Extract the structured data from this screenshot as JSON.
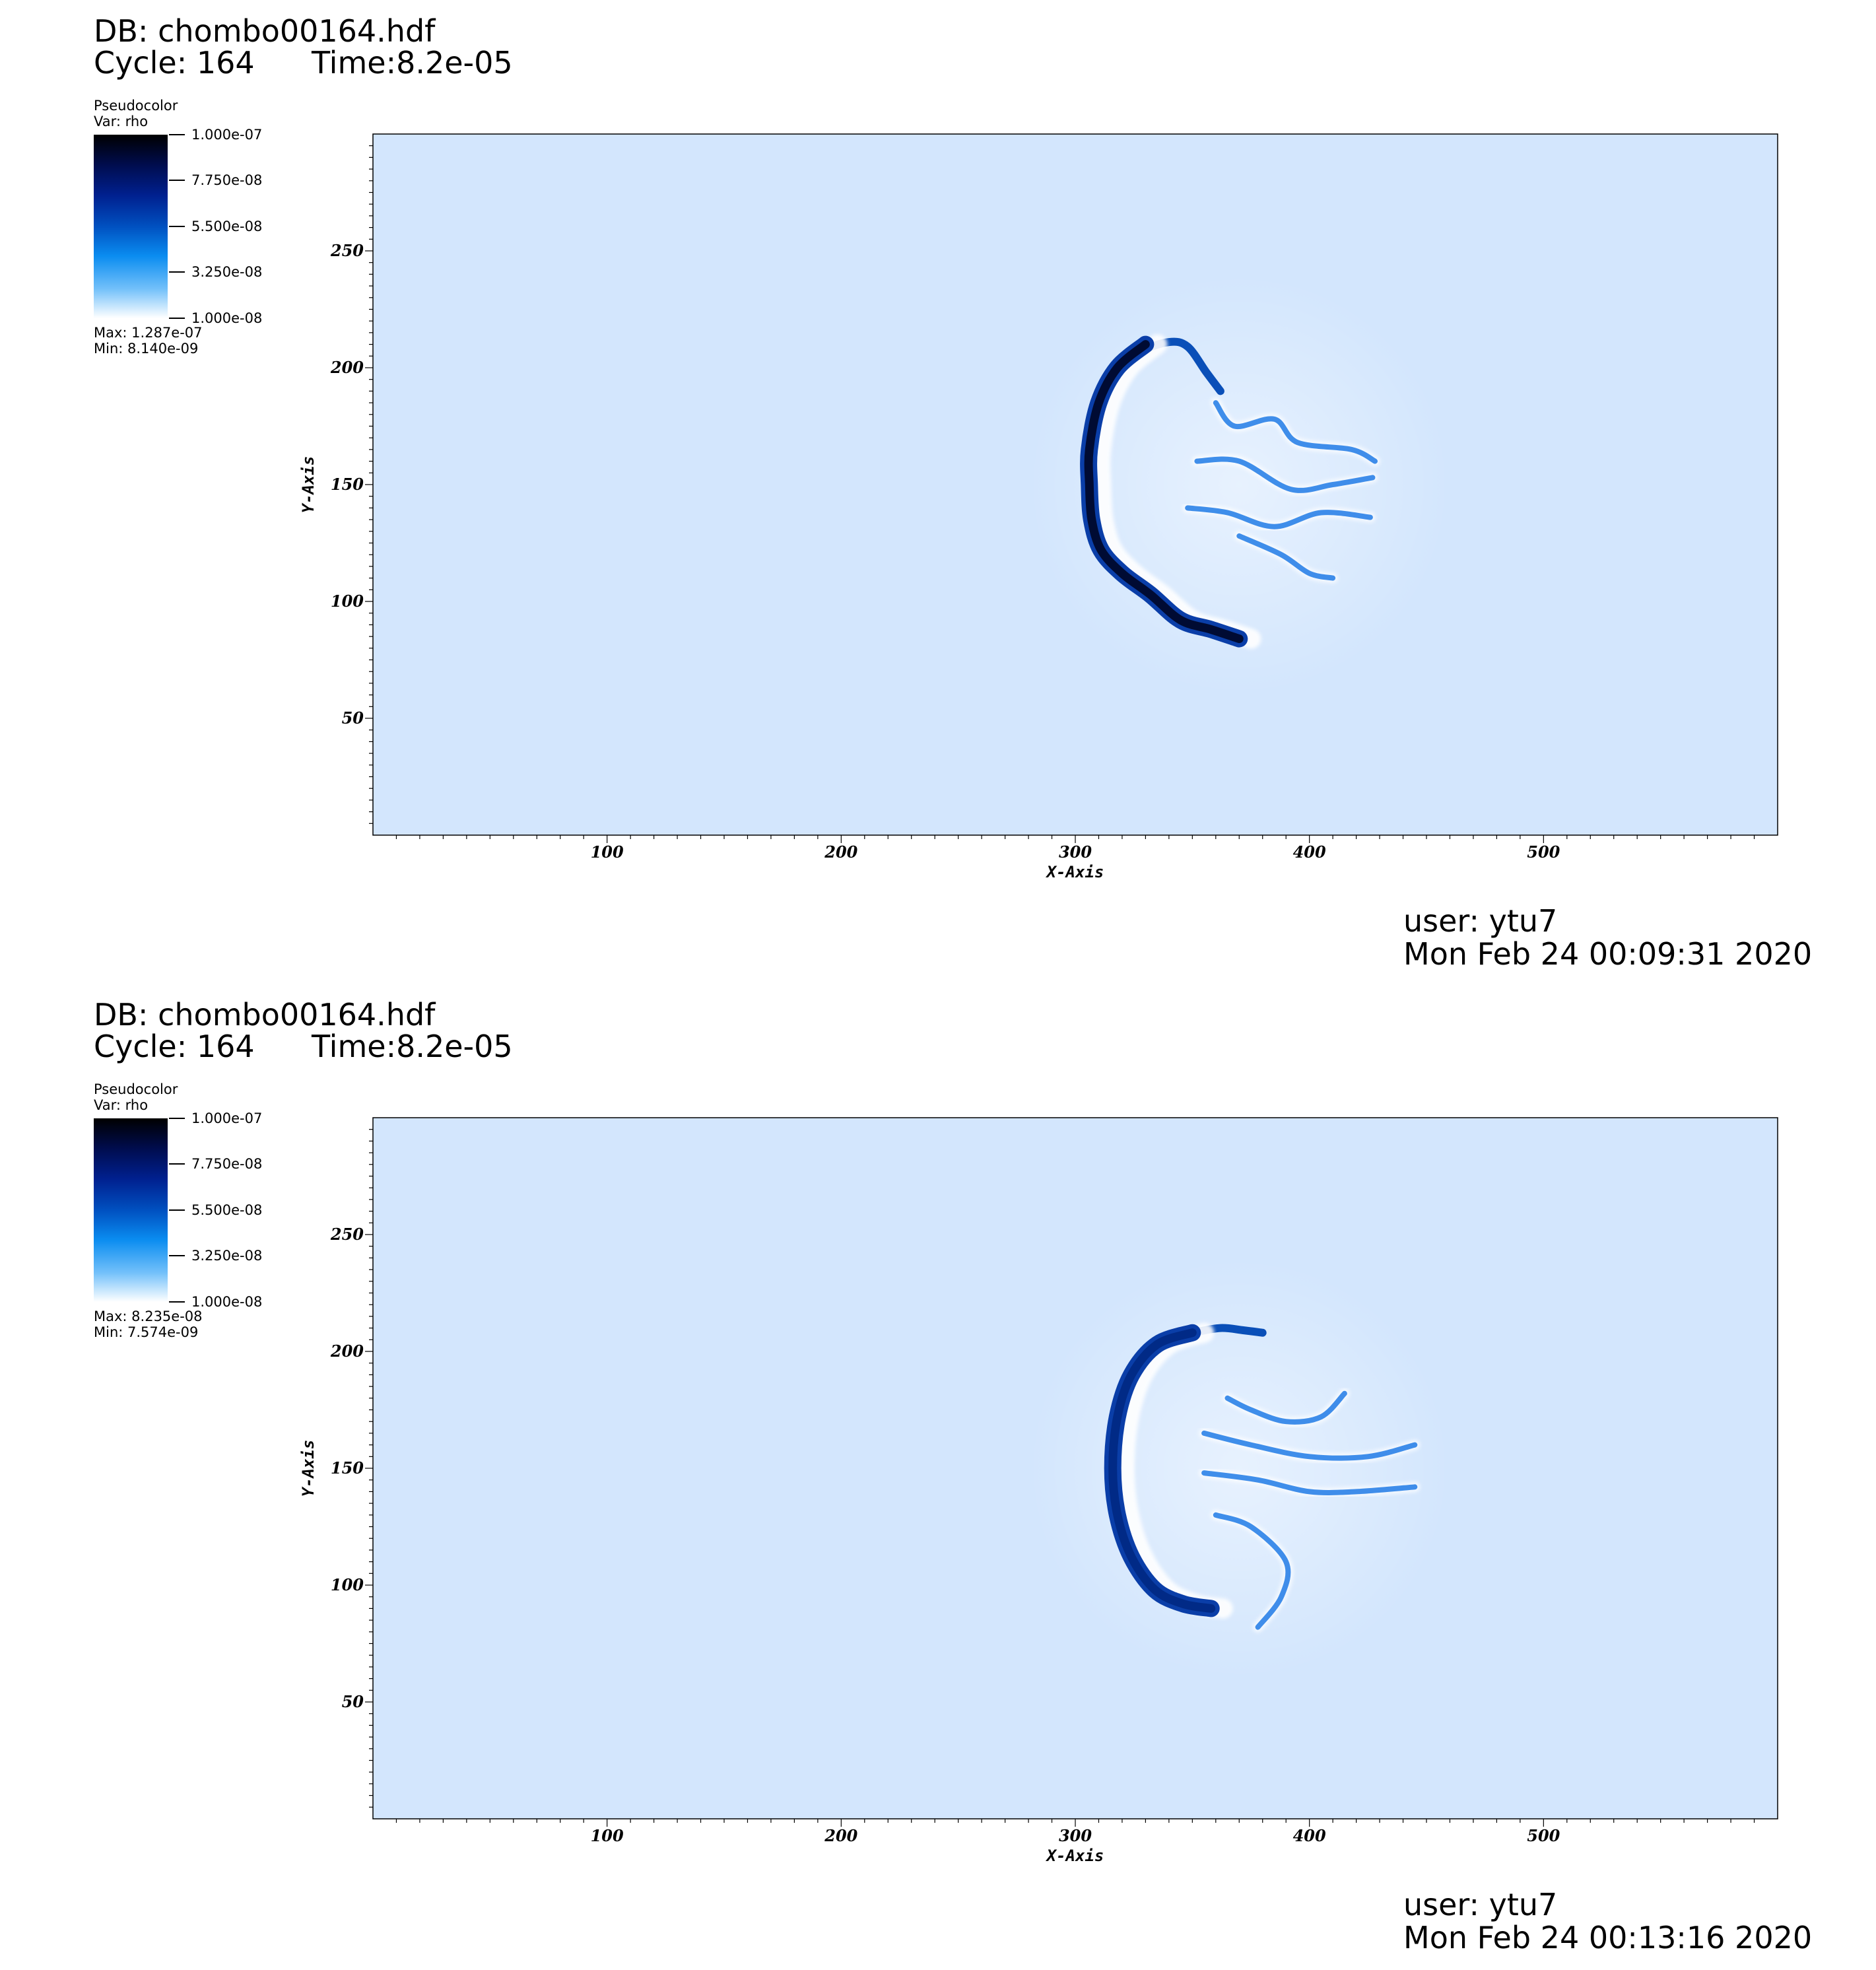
{
  "panels": [
    {
      "db_label": "DB: chombo00164.hdf",
      "cycle_label": "Cycle: 164",
      "time_label": "Time:8.2e-05",
      "legend": {
        "title": "Pseudocolor",
        "var": "Var: rho",
        "ticks": [
          "1.000e-07",
          "7.750e-08",
          "5.500e-08",
          "3.250e-08",
          "1.000e-08"
        ],
        "max": "Max:  1.287e-07",
        "min": "Min:  8.140e-09"
      },
      "user": "user: ytu7",
      "date": "Mon Feb 24 00:09:31 2020"
    },
    {
      "db_label": "DB: chombo00164.hdf",
      "cycle_label": "Cycle: 164",
      "time_label": "Time:8.2e-05",
      "legend": {
        "title": "Pseudocolor",
        "var": "Var: rho",
        "ticks": [
          "1.000e-07",
          "7.750e-08",
          "5.500e-08",
          "3.250e-08",
          "1.000e-08"
        ],
        "max": "Max:  8.235e-08",
        "min": "Min:  7.574e-09"
      },
      "user": "user: ytu7",
      "date": "Mon Feb 24 00:13:16 2020"
    }
  ],
  "chart_data": [
    {
      "type": "heatmap",
      "variable": "rho",
      "xlabel": "X-Axis",
      "ylabel": "Y-Axis",
      "xlim": [
        0,
        600
      ],
      "ylim": [
        0,
        300
      ],
      "xticks": [
        100,
        200,
        300,
        400,
        500
      ],
      "yticks": [
        50,
        100,
        150,
        200,
        250
      ],
      "colorbar_range": [
        1e-08,
        1e-07
      ],
      "data_max": 1.287e-07,
      "data_min": 8.14e-09,
      "background_color": "#d3e6fd",
      "features": {
        "front_arc": [
          [
            330,
            210
          ],
          [
            318,
            200
          ],
          [
            310,
            185
          ],
          [
            306,
            165
          ],
          [
            306,
            150
          ],
          [
            307,
            135
          ],
          [
            311,
            122
          ],
          [
            320,
            112
          ],
          [
            332,
            103
          ],
          [
            345,
            92
          ],
          [
            358,
            88
          ],
          [
            370,
            84
          ]
        ],
        "upper_rim": [
          [
            318,
            200
          ],
          [
            328,
            207
          ],
          [
            340,
            211
          ],
          [
            348,
            209
          ],
          [
            356,
            198
          ],
          [
            362,
            190
          ]
        ],
        "filaments": [
          [
            [
              360,
              185
            ],
            [
              368,
              175
            ],
            [
              385,
              178
            ],
            [
              395,
              168
            ],
            [
              418,
              165
            ],
            [
              428,
              160
            ]
          ],
          [
            [
              352,
              160
            ],
            [
              370,
              160
            ],
            [
              392,
              148
            ],
            [
              410,
              150
            ],
            [
              427,
              153
            ]
          ],
          [
            [
              348,
              140
            ],
            [
              365,
              138
            ],
            [
              385,
              132
            ],
            [
              405,
              138
            ],
            [
              426,
              136
            ]
          ],
          [
            [
              370,
              128
            ],
            [
              388,
              120
            ],
            [
              400,
              112
            ],
            [
              410,
              110
            ]
          ]
        ]
      }
    },
    {
      "type": "heatmap",
      "variable": "rho",
      "xlabel": "X-Axis",
      "ylabel": "Y-Axis",
      "xlim": [
        0,
        600
      ],
      "ylim": [
        0,
        300
      ],
      "xticks": [
        100,
        200,
        300,
        400,
        500
      ],
      "yticks": [
        50,
        100,
        150,
        200,
        250
      ],
      "colorbar_range": [
        1e-08,
        1e-07
      ],
      "data_max": 8.235e-08,
      "data_min": 7.574e-09,
      "background_color": "#d3e6fd",
      "features": {
        "front_arc": [
          [
            350,
            208
          ],
          [
            335,
            203
          ],
          [
            324,
            190
          ],
          [
            318,
            172
          ],
          [
            316,
            150
          ],
          [
            318,
            130
          ],
          [
            324,
            112
          ],
          [
            334,
            98
          ],
          [
            346,
            92
          ],
          [
            358,
            90
          ]
        ],
        "upper_rim": [
          [
            350,
            208
          ],
          [
            362,
            210
          ],
          [
            372,
            209
          ],
          [
            380,
            208
          ]
        ],
        "filaments": [
          [
            [
              365,
              180
            ],
            [
              375,
              175
            ],
            [
              390,
              170
            ],
            [
              405,
              172
            ],
            [
              415,
              182
            ]
          ],
          [
            [
              355,
              165
            ],
            [
              375,
              160
            ],
            [
              400,
              155
            ],
            [
              425,
              155
            ],
            [
              445,
              160
            ]
          ],
          [
            [
              355,
              148
            ],
            [
              378,
              145
            ],
            [
              400,
              140
            ],
            [
              420,
              140
            ],
            [
              445,
              142
            ]
          ],
          [
            [
              360,
              130
            ],
            [
              375,
              125
            ],
            [
              390,
              110
            ],
            [
              388,
              95
            ],
            [
              378,
              82
            ]
          ]
        ]
      }
    }
  ]
}
